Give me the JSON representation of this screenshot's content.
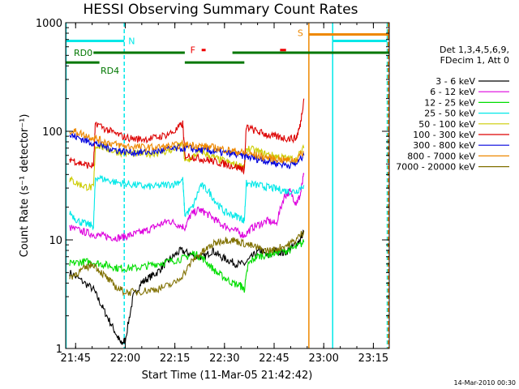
{
  "chart_data": {
    "type": "line",
    "title": "HESSI Observing Summary Count Rates",
    "xlabel": "Start Time (11-Mar-05 21:42:42)",
    "ylabel": "Count Rate (s⁻¹ detector⁻¹)",
    "yscale": "log",
    "ylim": [
      1,
      1000
    ],
    "xlim_minutes": [
      21.7,
      23.33
    ],
    "x_ticks": [
      {
        "label": "21:45",
        "t": 21.75
      },
      {
        "label": "22:00",
        "t": 22.0
      },
      {
        "label": "22:15",
        "t": 22.25
      },
      {
        "label": "22:30",
        "t": 22.5
      },
      {
        "label": "22:45",
        "t": 22.75
      },
      {
        "label": "23:00",
        "t": 23.0
      },
      {
        "label": "23:15",
        "t": 23.25
      }
    ],
    "y_ticks": [
      {
        "label": "1",
        "v": 1
      },
      {
        "label": "10",
        "v": 10
      },
      {
        "label": "100",
        "v": 100
      },
      {
        "label": "1000",
        "v": 1000
      }
    ],
    "legend_header": [
      "Det 1,3,4,5,6,9,",
      "FDecim 1, Att 0"
    ],
    "series": [
      {
        "name": "3 - 6 keV",
        "color": "#000000",
        "points": [
          [
            21.72,
            5
          ],
          [
            21.78,
            4.2
          ],
          [
            21.84,
            3.5
          ],
          [
            21.88,
            2.5
          ],
          [
            21.92,
            1.8
          ],
          [
            21.96,
            1.3
          ],
          [
            21.98,
            1.1
          ],
          [
            22.0,
            1.2
          ],
          [
            22.04,
            3
          ],
          [
            22.08,
            4
          ],
          [
            22.12,
            4.5
          ],
          [
            22.16,
            5
          ],
          [
            22.2,
            6
          ],
          [
            22.24,
            7
          ],
          [
            22.28,
            8
          ],
          [
            22.32,
            7.5
          ],
          [
            22.36,
            7
          ],
          [
            22.4,
            7
          ],
          [
            22.44,
            8
          ],
          [
            22.48,
            7
          ],
          [
            22.52,
            6.5
          ],
          [
            22.56,
            6
          ],
          [
            22.6,
            6
          ],
          [
            22.64,
            7
          ],
          [
            22.68,
            8
          ],
          [
            22.72,
            7
          ],
          [
            22.76,
            8
          ],
          [
            22.8,
            7.5
          ],
          [
            22.84,
            8.5
          ],
          [
            22.88,
            10
          ],
          [
            22.9,
            12
          ]
        ]
      },
      {
        "name": "6 - 12 keV",
        "color": "#dd00dd",
        "points": [
          [
            21.72,
            13
          ],
          [
            21.78,
            12
          ],
          [
            21.82,
            11.5
          ],
          [
            21.86,
            11
          ],
          [
            21.9,
            10.8
          ],
          [
            21.94,
            10.5
          ],
          [
            21.98,
            10.5
          ],
          [
            22.02,
            11
          ],
          [
            22.06,
            11.5
          ],
          [
            22.1,
            12
          ],
          [
            22.14,
            13
          ],
          [
            22.18,
            14
          ],
          [
            22.22,
            15
          ],
          [
            22.26,
            14
          ],
          [
            22.3,
            13
          ],
          [
            22.33,
            17
          ],
          [
            22.37,
            19
          ],
          [
            22.4,
            18
          ],
          [
            22.44,
            16
          ],
          [
            22.48,
            14
          ],
          [
            22.52,
            13
          ],
          [
            22.56,
            12
          ],
          [
            22.6,
            11
          ],
          [
            22.64,
            13
          ],
          [
            22.68,
            14
          ],
          [
            22.72,
            15
          ],
          [
            22.76,
            14
          ],
          [
            22.8,
            25
          ],
          [
            22.83,
            28
          ],
          [
            22.86,
            22
          ],
          [
            22.88,
            25
          ],
          [
            22.9,
            40
          ]
        ]
      },
      {
        "name": "12 - 25 keV",
        "color": "#00dd00",
        "points": [
          [
            21.72,
            6
          ],
          [
            21.76,
            6.2
          ],
          [
            21.8,
            6.3
          ],
          [
            21.84,
            6.2
          ],
          [
            21.88,
            6
          ],
          [
            21.92,
            5.8
          ],
          [
            21.96,
            5.5
          ],
          [
            22.0,
            5.5
          ],
          [
            22.05,
            5.5
          ],
          [
            22.1,
            5.7
          ],
          [
            22.15,
            6
          ],
          [
            22.2,
            6.2
          ],
          [
            22.25,
            6.5
          ],
          [
            22.3,
            6.8
          ],
          [
            22.34,
            7.5
          ],
          [
            22.38,
            7
          ],
          [
            22.42,
            6
          ],
          [
            22.46,
            5
          ],
          [
            22.5,
            4.5
          ],
          [
            22.54,
            4
          ],
          [
            22.58,
            3.8
          ],
          [
            22.6,
            3.5
          ],
          [
            22.62,
            6
          ],
          [
            22.66,
            7
          ],
          [
            22.7,
            7.2
          ],
          [
            22.74,
            7.5
          ],
          [
            22.78,
            7.8
          ],
          [
            22.82,
            8
          ],
          [
            22.86,
            8.5
          ],
          [
            22.9,
            9.5
          ]
        ]
      },
      {
        "name": "25 - 50 keV",
        "color": "#00e8e8",
        "points": [
          [
            21.72,
            18
          ],
          [
            21.76,
            15
          ],
          [
            21.8,
            14
          ],
          [
            21.84,
            13.5
          ],
          [
            21.85,
            38
          ],
          [
            21.9,
            36
          ],
          [
            21.95,
            34
          ],
          [
            22.0,
            33
          ],
          [
            22.05,
            32
          ],
          [
            22.1,
            31
          ],
          [
            22.15,
            31
          ],
          [
            22.2,
            32
          ],
          [
            22.25,
            33
          ],
          [
            22.29,
            36
          ],
          [
            22.3,
            17
          ],
          [
            22.34,
            20
          ],
          [
            22.38,
            32
          ],
          [
            22.42,
            28
          ],
          [
            22.46,
            22
          ],
          [
            22.5,
            18
          ],
          [
            22.54,
            17
          ],
          [
            22.58,
            16
          ],
          [
            22.6,
            15
          ],
          [
            22.61,
            33
          ],
          [
            22.66,
            32
          ],
          [
            22.7,
            31
          ],
          [
            22.74,
            30
          ],
          [
            22.78,
            29
          ],
          [
            22.82,
            28
          ],
          [
            22.86,
            28
          ],
          [
            22.9,
            32
          ]
        ]
      },
      {
        "name": "50 - 100 keV",
        "color": "#cccc00",
        "points": [
          [
            21.72,
            36
          ],
          [
            21.76,
            33
          ],
          [
            21.8,
            31
          ],
          [
            21.84,
            30
          ],
          [
            21.85,
            75
          ],
          [
            21.9,
            70
          ],
          [
            21.95,
            65
          ],
          [
            22.0,
            63
          ],
          [
            22.05,
            62
          ],
          [
            22.1,
            62
          ],
          [
            22.15,
            63
          ],
          [
            22.2,
            65
          ],
          [
            22.25,
            68
          ],
          [
            22.29,
            78
          ],
          [
            22.3,
            52
          ],
          [
            22.34,
            58
          ],
          [
            22.38,
            66
          ],
          [
            22.42,
            60
          ],
          [
            22.46,
            56
          ],
          [
            22.5,
            53
          ],
          [
            22.54,
            50
          ],
          [
            22.58,
            48
          ],
          [
            22.6,
            47
          ],
          [
            22.61,
            70
          ],
          [
            22.66,
            66
          ],
          [
            22.7,
            62
          ],
          [
            22.74,
            60
          ],
          [
            22.78,
            58
          ],
          [
            22.82,
            56
          ],
          [
            22.86,
            55
          ],
          [
            22.9,
            70
          ]
        ]
      },
      {
        "name": "100 - 300 keV",
        "color": "#dd0000",
        "points": [
          [
            21.72,
            56
          ],
          [
            21.76,
            52
          ],
          [
            21.8,
            49
          ],
          [
            21.84,
            48
          ],
          [
            21.85,
            120
          ],
          [
            21.9,
            105
          ],
          [
            21.95,
            95
          ],
          [
            22.0,
            88
          ],
          [
            22.05,
            85
          ],
          [
            22.1,
            85
          ],
          [
            22.15,
            87
          ],
          [
            22.2,
            92
          ],
          [
            22.25,
            100
          ],
          [
            22.29,
            118
          ],
          [
            22.3,
            60
          ],
          [
            22.34,
            58
          ],
          [
            22.38,
            56
          ],
          [
            22.42,
            54
          ],
          [
            22.46,
            52
          ],
          [
            22.5,
            50
          ],
          [
            22.54,
            48
          ],
          [
            22.58,
            46
          ],
          [
            22.6,
            44
          ],
          [
            22.61,
            110
          ],
          [
            22.66,
            100
          ],
          [
            22.7,
            95
          ],
          [
            22.74,
            90
          ],
          [
            22.78,
            88
          ],
          [
            22.82,
            86
          ],
          [
            22.86,
            86
          ],
          [
            22.88,
            110
          ],
          [
            22.9,
            200
          ]
        ]
      },
      {
        "name": "300 - 800 keV",
        "color": "#0000dd",
        "points": [
          [
            21.72,
            92
          ],
          [
            21.76,
            88
          ],
          [
            21.8,
            82
          ],
          [
            21.84,
            78
          ],
          [
            21.88,
            74
          ],
          [
            21.92,
            70
          ],
          [
            21.96,
            67
          ],
          [
            22.0,
            65
          ],
          [
            22.05,
            64
          ],
          [
            22.1,
            64
          ],
          [
            22.15,
            65
          ],
          [
            22.2,
            67
          ],
          [
            22.25,
            69
          ],
          [
            22.3,
            70
          ],
          [
            22.34,
            69
          ],
          [
            22.38,
            67
          ],
          [
            22.42,
            66
          ],
          [
            22.46,
            65
          ],
          [
            22.5,
            63
          ],
          [
            22.54,
            62
          ],
          [
            22.58,
            60
          ],
          [
            22.62,
            58
          ],
          [
            22.66,
            56
          ],
          [
            22.7,
            54
          ],
          [
            22.74,
            52
          ],
          [
            22.78,
            50
          ],
          [
            22.82,
            49
          ],
          [
            22.86,
            50
          ],
          [
            22.9,
            60
          ]
        ]
      },
      {
        "name": "800 - 7000 keV",
        "color": "#ee8800",
        "points": [
          [
            21.72,
            102
          ],
          [
            21.76,
            98
          ],
          [
            21.8,
            92
          ],
          [
            21.84,
            87
          ],
          [
            21.88,
            82
          ],
          [
            21.92,
            78
          ],
          [
            21.96,
            75
          ],
          [
            22.0,
            73
          ],
          [
            22.05,
            72
          ],
          [
            22.1,
            71
          ],
          [
            22.15,
            71
          ],
          [
            22.2,
            72
          ],
          [
            22.25,
            74
          ],
          [
            22.3,
            75
          ],
          [
            22.34,
            75
          ],
          [
            22.38,
            73
          ],
          [
            22.42,
            72
          ],
          [
            22.46,
            70
          ],
          [
            22.5,
            68
          ],
          [
            22.54,
            66
          ],
          [
            22.58,
            64
          ],
          [
            22.62,
            62
          ],
          [
            22.66,
            60
          ],
          [
            22.7,
            58
          ],
          [
            22.74,
            56
          ],
          [
            22.78,
            55
          ],
          [
            22.82,
            54
          ],
          [
            22.86,
            55
          ],
          [
            22.9,
            65
          ]
        ]
      },
      {
        "name": "7000 - 20000 keV",
        "color": "#807000",
        "points": [
          [
            21.72,
            4.5
          ],
          [
            21.76,
            5
          ],
          [
            21.8,
            5.5
          ],
          [
            21.84,
            6
          ],
          [
            21.88,
            5
          ],
          [
            21.92,
            4.2
          ],
          [
            21.96,
            3.6
          ],
          [
            22.0,
            3.3
          ],
          [
            22.05,
            3.3
          ],
          [
            22.1,
            3.4
          ],
          [
            22.15,
            3.5
          ],
          [
            22.2,
            3.7
          ],
          [
            22.25,
            4
          ],
          [
            22.3,
            5
          ],
          [
            22.34,
            6.5
          ],
          [
            22.38,
            7.5
          ],
          [
            22.42,
            8.5
          ],
          [
            22.46,
            9.5
          ],
          [
            22.5,
            10
          ],
          [
            22.54,
            10
          ],
          [
            22.58,
            9.5
          ],
          [
            22.62,
            9
          ],
          [
            22.66,
            8.5
          ],
          [
            22.7,
            8
          ],
          [
            22.74,
            8
          ],
          [
            22.78,
            8.5
          ],
          [
            22.82,
            9
          ],
          [
            22.86,
            10
          ],
          [
            22.9,
            12
          ]
        ]
      }
    ],
    "vertical_lines": [
      {
        "t": 21.702,
        "color": "#00e8e8",
        "style": "solid"
      },
      {
        "t": 21.995,
        "color": "#00e8e8",
        "style": "dashed"
      },
      {
        "t": 22.925,
        "color": "#ee8800",
        "style": "solid"
      },
      {
        "t": 23.045,
        "color": "#00e8e8",
        "style": "solid"
      },
      {
        "t": 23.32,
        "color": "#00e8e8",
        "style": "dashed"
      },
      {
        "t": 23.325,
        "color": "#ee8800",
        "style": "dashed"
      }
    ],
    "flag_bars": [
      {
        "label": "N",
        "color": "#00e8e8",
        "y": 680,
        "segments": [
          [
            21.702,
            21.995
          ],
          [
            23.045,
            23.32
          ]
        ]
      },
      {
        "label": "S",
        "color": "#ee8800",
        "y": 780,
        "segments": [
          [
            22.925,
            23.33
          ]
        ]
      },
      {
        "label": "F",
        "color": "#ee0000",
        "y": 560,
        "segments": [
          [
            22.385,
            22.405
          ],
          [
            22.78,
            22.81
          ]
        ]
      },
      {
        "label": "RD0",
        "color": "#007700",
        "y": 530,
        "segments": [
          [
            21.84,
            22.3
          ],
          [
            22.54,
            23.33
          ]
        ]
      },
      {
        "label": "RD4",
        "color": "#007700",
        "y": 430,
        "segments": [
          [
            21.702,
            21.87
          ],
          [
            22.3,
            22.6
          ]
        ]
      }
    ]
  },
  "footer": {
    "timestamp": "14-Mar-2010 00:30"
  }
}
